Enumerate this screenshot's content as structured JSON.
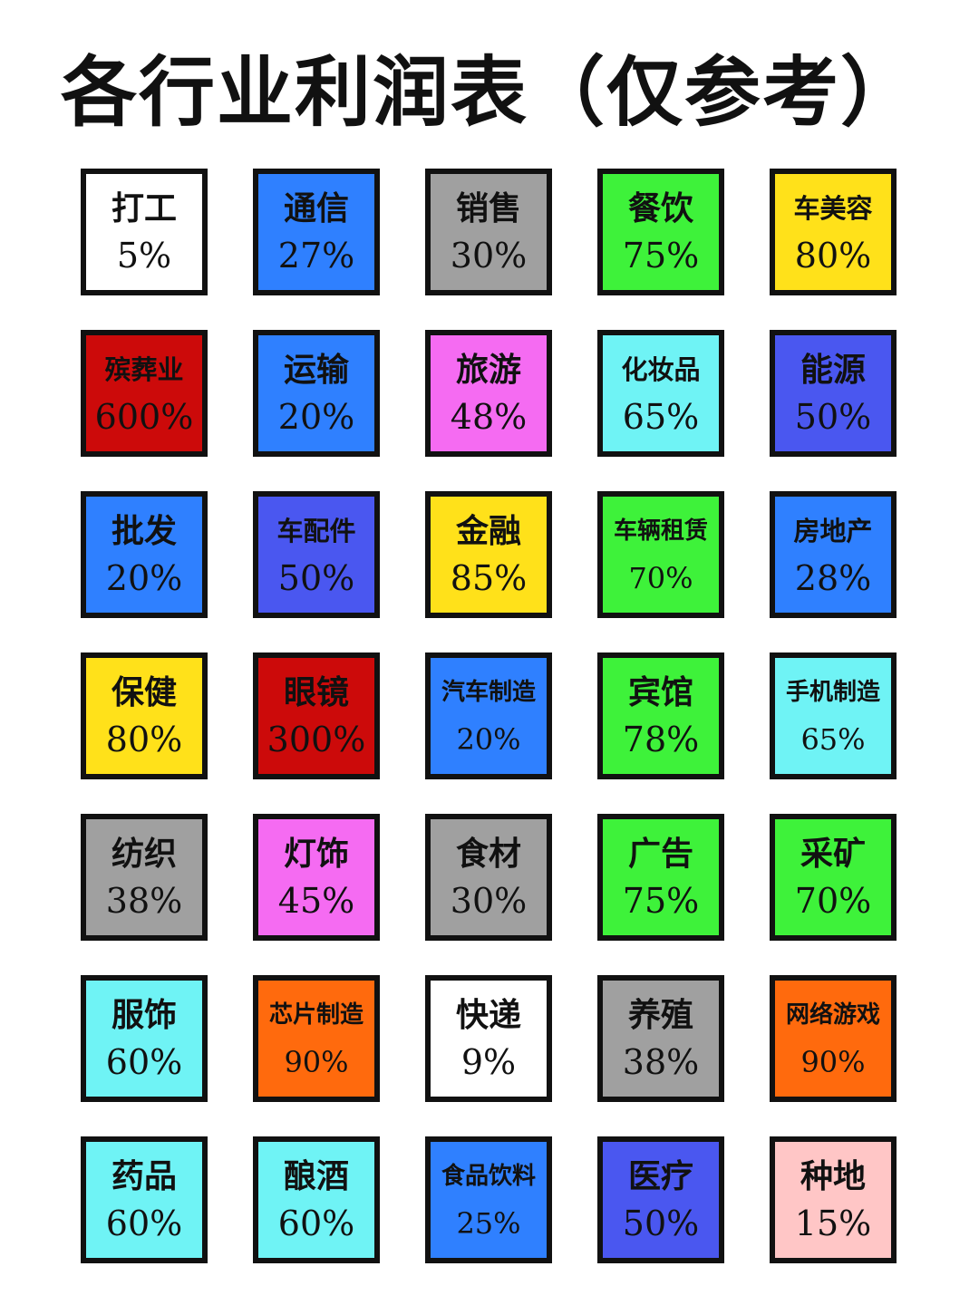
{
  "title": "各行业利润表（仅参考）",
  "items": [
    {
      "name": "打工",
      "percent": "5%",
      "color": "#ffffff"
    },
    {
      "name": "通信",
      "percent": "27%",
      "color": "#2f80ff"
    },
    {
      "name": "销售",
      "percent": "30%",
      "color": "#a0a0a0"
    },
    {
      "name": "餐饮",
      "percent": "75%",
      "color": "#3ef23a"
    },
    {
      "name": "车美容",
      "percent": "80%",
      "color": "#ffe11a"
    },
    {
      "name": "殡葬业",
      "percent": "600%",
      "color": "#cc0a0a"
    },
    {
      "name": "运输",
      "percent": "20%",
      "color": "#2f80ff"
    },
    {
      "name": "旅游",
      "percent": "48%",
      "color": "#f56bf2"
    },
    {
      "name": "化妆品",
      "percent": "65%",
      "color": "#6ff3f5"
    },
    {
      "name": "能源",
      "percent": "50%",
      "color": "#4a57f0"
    },
    {
      "name": "批发",
      "percent": "20%",
      "color": "#2f80ff"
    },
    {
      "name": "车配件",
      "percent": "50%",
      "color": "#4a57f0"
    },
    {
      "name": "金融",
      "percent": "85%",
      "color": "#ffe11a"
    },
    {
      "name": "车辆租赁",
      "percent": "70%",
      "color": "#3ef23a"
    },
    {
      "name": "房地产",
      "percent": "28%",
      "color": "#2f80ff"
    },
    {
      "name": "保健",
      "percent": "80%",
      "color": "#ffe11a"
    },
    {
      "name": "眼镜",
      "percent": "300%",
      "color": "#cc0a0a"
    },
    {
      "name": "汽车制造",
      "percent": "20%",
      "color": "#2f80ff"
    },
    {
      "name": "宾馆",
      "percent": "78%",
      "color": "#3ef23a"
    },
    {
      "name": "手机制造",
      "percent": "65%",
      "color": "#6ff3f5"
    },
    {
      "name": "纺织",
      "percent": "38%",
      "color": "#a0a0a0"
    },
    {
      "name": "灯饰",
      "percent": "45%",
      "color": "#f56bf2"
    },
    {
      "name": "食材",
      "percent": "30%",
      "color": "#a0a0a0"
    },
    {
      "name": "广告",
      "percent": "75%",
      "color": "#3ef23a"
    },
    {
      "name": "采矿",
      "percent": "70%",
      "color": "#3ef23a"
    },
    {
      "name": "服饰",
      "percent": "60%",
      "color": "#6ff3f5"
    },
    {
      "name": "芯片制造",
      "percent": "90%",
      "color": "#ff6a0d"
    },
    {
      "name": "快递",
      "percent": "9%",
      "color": "#ffffff"
    },
    {
      "name": "养殖",
      "percent": "38%",
      "color": "#a0a0a0"
    },
    {
      "name": "网络游戏",
      "percent": "90%",
      "color": "#ff6a0d"
    },
    {
      "name": "药品",
      "percent": "60%",
      "color": "#6ff3f5"
    },
    {
      "name": "酿酒",
      "percent": "60%",
      "color": "#6ff3f5"
    },
    {
      "name": "食品饮料",
      "percent": "25%",
      "color": "#2f80ff"
    },
    {
      "name": "医疗",
      "percent": "50%",
      "color": "#4a57f0"
    },
    {
      "name": "种地",
      "percent": "15%",
      "color": "#ffc6c6"
    }
  ]
}
